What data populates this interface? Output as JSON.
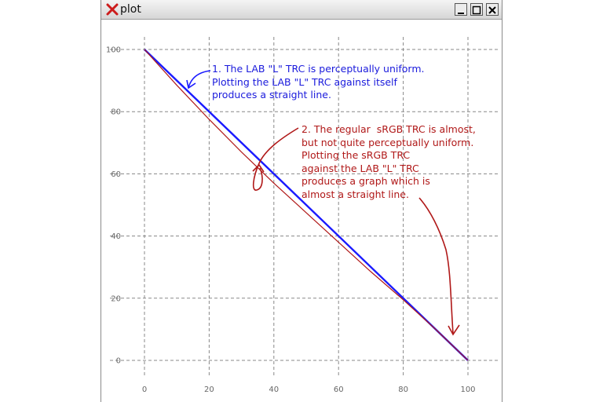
{
  "window": {
    "title": "plot"
  },
  "annotations": {
    "lab_note": "1. The LAB \"L\" TRC is perceptually uniform.\nPlotting the LAB \"L\" TRC against itself\nproduces a straight line.",
    "srgb_note": "2. The regular  sRGB TRC is almost,\nbut not quite perceptually uniform.\nPlotting the sRGB TRC\nagainst the LAB \"L\" TRC\nproduces a graph which is\nalmost a straight line."
  },
  "colors": {
    "lab_line": "#1a1aff",
    "srgb_line": "#b01818",
    "annotation_blue": "#1a1adc",
    "annotation_red": "#b01818",
    "grid": "#888888"
  },
  "chart_data": {
    "type": "line",
    "xlim": [
      0,
      100
    ],
    "ylim": [
      0,
      100
    ],
    "xticks": [
      0,
      20,
      40,
      60,
      80,
      100
    ],
    "yticks": [
      0,
      20,
      40,
      60,
      80,
      100
    ],
    "grid": true,
    "series": [
      {
        "color": "#1a1aff",
        "x": [
          0,
          100
        ],
        "y": [
          100,
          0
        ]
      },
      {
        "color": "#b01818",
        "x": [
          0,
          10,
          20,
          30,
          40,
          50,
          60,
          70,
          80,
          90,
          100
        ],
        "y": [
          100,
          88.5,
          77.5,
          67,
          57,
          47.5,
          38,
          28.5,
          19.5,
          10,
          0
        ]
      }
    ]
  }
}
